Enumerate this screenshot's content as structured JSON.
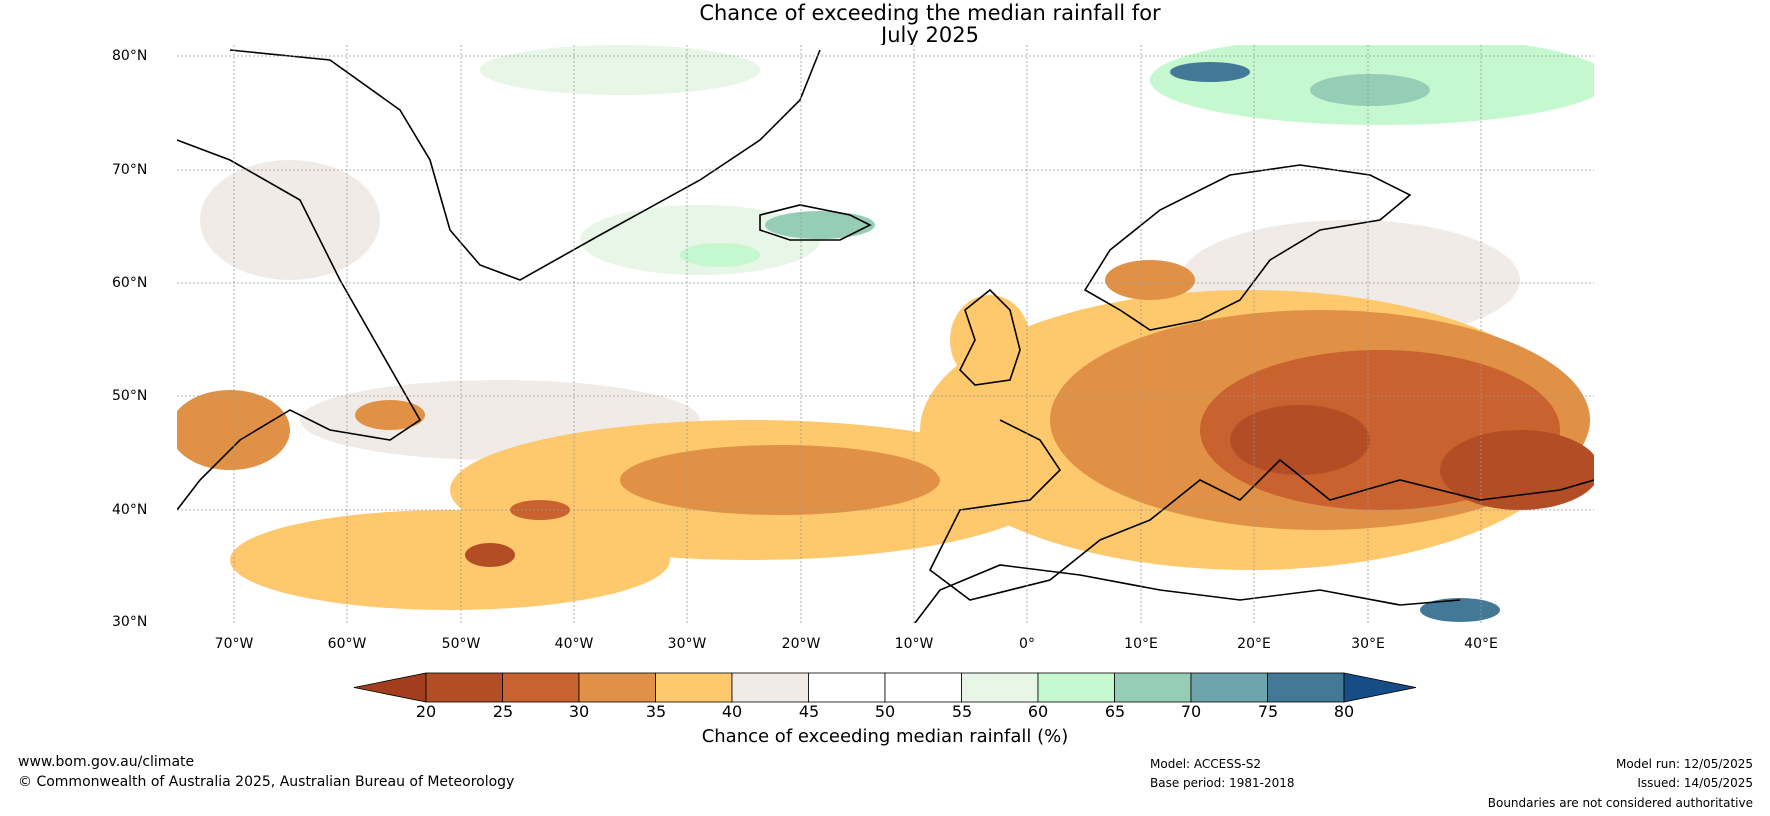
{
  "title": {
    "line1": "Chance of exceeding the median rainfall for",
    "line2": "July 2025"
  },
  "map": {
    "lat_labels": [
      "80°N",
      "70°N",
      "60°N",
      "50°N",
      "40°N",
      "30°N"
    ],
    "lon_labels": [
      "70°W",
      "60°W",
      "50°W",
      "40°W",
      "30°W",
      "20°W",
      "10°W",
      "0°",
      "10°E",
      "20°E",
      "30°E",
      "40°E"
    ],
    "extent": {
      "lon_min": -75,
      "lon_max": 50,
      "lat_min": 30,
      "lat_max": 81
    }
  },
  "colorbar": {
    "ticks": [
      "20",
      "25",
      "30",
      "35",
      "40",
      "45",
      "50",
      "55",
      "60",
      "65",
      "70",
      "75",
      "80"
    ],
    "colors": [
      "#a23e1e",
      "#b34d26",
      "#c9622f",
      "#e09146",
      "#fec96c",
      "#f0ebe7",
      "#ffffff",
      "#ffffff",
      "#e7f6e6",
      "#c5f8cf",
      "#96cdb7",
      "#6fa4ac",
      "#437997",
      "#164d87"
    ],
    "label": "Chance of exceeding median rainfall (%)"
  },
  "footer": {
    "website": "www.bom.gov.au/climate",
    "copyright": "© Commonwealth of Australia 2025, Australian Bureau of Meteorology",
    "model": "Model: ACCESS-S2",
    "base_period": "Base period: 1981-2018",
    "model_run": "Model run: 12/05/2025",
    "issued": "Issued: 14/05/2025",
    "disclaimer": "Boundaries are not considered authoritative"
  }
}
